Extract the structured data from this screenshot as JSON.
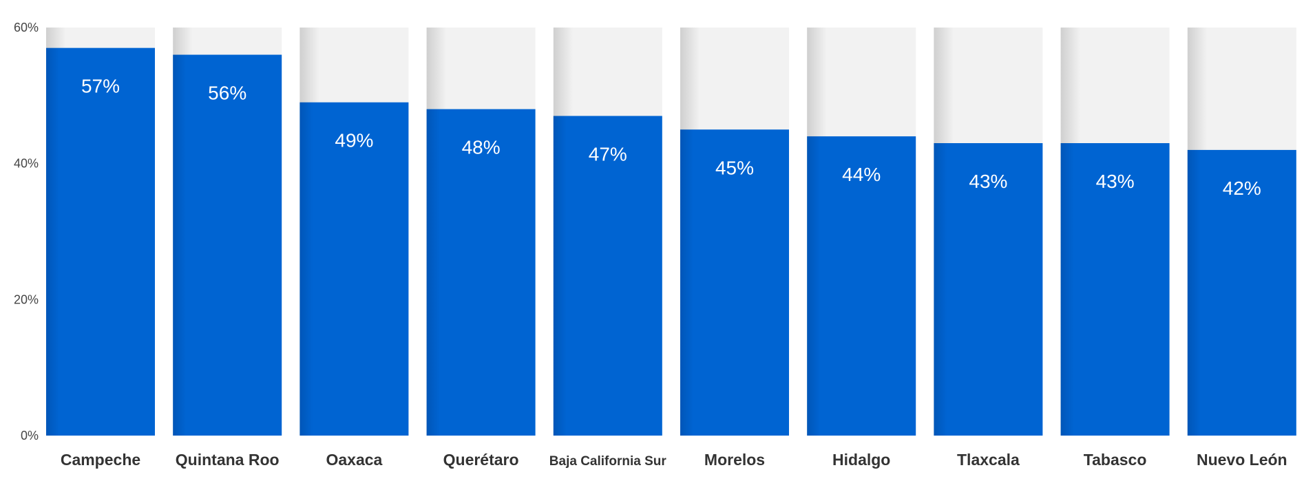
{
  "chart_data": {
    "type": "bar",
    "categories": [
      "Campeche",
      "Quintana Roo",
      "Oaxaca",
      "Querétaro",
      "Baja California Sur",
      "Morelos",
      "Hidalgo",
      "Tlaxcala",
      "Tabasco",
      "Nuevo León"
    ],
    "values": [
      57,
      56,
      49,
      48,
      47,
      45,
      44,
      43,
      43,
      42
    ],
    "value_labels": [
      "57%",
      "56%",
      "49%",
      "48%",
      "47%",
      "45%",
      "44%",
      "43%",
      "43%",
      "42%"
    ],
    "y_ticks": [
      {
        "value": 0,
        "label": "0%"
      },
      {
        "value": 20,
        "label": "20%"
      },
      {
        "value": 40,
        "label": "40%"
      },
      {
        "value": 60,
        "label": "60%"
      }
    ],
    "ylim": [
      0,
      60
    ],
    "grid": false,
    "legend": "none",
    "colors": {
      "bar": "#0064d2",
      "background_bar": "#f2f2f2",
      "background_shade": "#cfcfcf",
      "value_label": "#ffffff",
      "category_label": "#333333",
      "tick_label": "#444444"
    }
  }
}
